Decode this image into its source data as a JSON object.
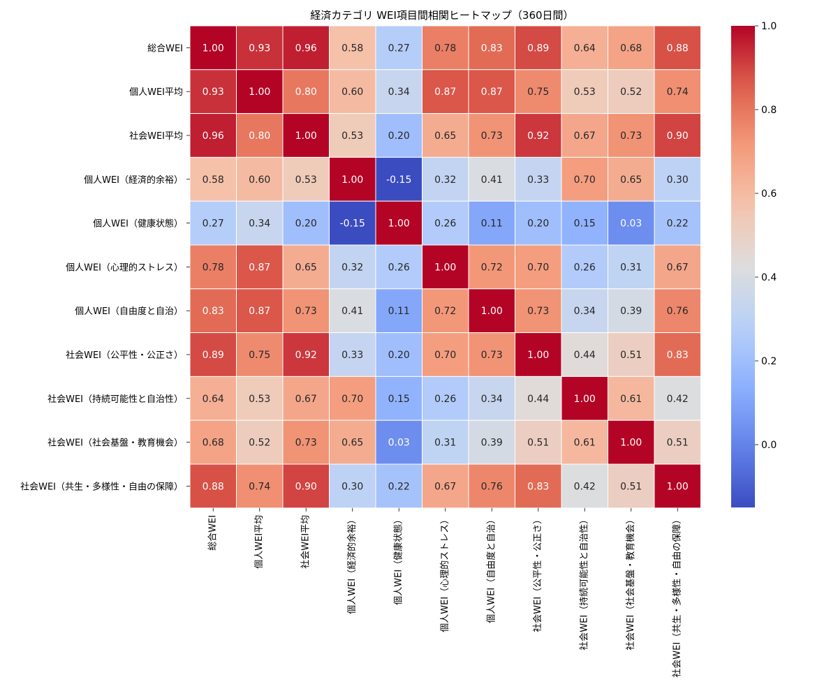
{
  "chart_data": {
    "type": "heatmap",
    "title": "経済カテゴリ WEI項目間相関ヒートマップ（360日間）",
    "xlabel": "",
    "ylabel": "",
    "labels": [
      "総合WEI",
      "個人WEI平均",
      "社会WEI平均",
      "個人WEI（経済的余裕）",
      "個人WEI（健康状態）",
      "個人WEI（心理的ストレス）",
      "個人WEI（自由度と自治）",
      "社会WEI（公平性・公正さ）",
      "社会WEI（持続可能性と自治性）",
      "社会WEI（社会基盤・教育機会）",
      "社会WEI（共生・多様性・自由の保障）"
    ],
    "values": [
      [
        1.0,
        0.93,
        0.96,
        0.58,
        0.27,
        0.78,
        0.83,
        0.89,
        0.64,
        0.68,
        0.88
      ],
      [
        0.93,
        1.0,
        0.8,
        0.6,
        0.34,
        0.87,
        0.87,
        0.75,
        0.53,
        0.52,
        0.74
      ],
      [
        0.96,
        0.8,
        1.0,
        0.53,
        0.2,
        0.65,
        0.73,
        0.92,
        0.67,
        0.73,
        0.9
      ],
      [
        0.58,
        0.6,
        0.53,
        1.0,
        -0.15,
        0.32,
        0.41,
        0.33,
        0.7,
        0.65,
        0.3
      ],
      [
        0.27,
        0.34,
        0.2,
        -0.15,
        1.0,
        0.26,
        0.11,
        0.2,
        0.15,
        0.03,
        0.22
      ],
      [
        0.78,
        0.87,
        0.65,
        0.32,
        0.26,
        1.0,
        0.72,
        0.7,
        0.26,
        0.31,
        0.67
      ],
      [
        0.83,
        0.87,
        0.73,
        0.41,
        0.11,
        0.72,
        1.0,
        0.73,
        0.34,
        0.39,
        0.76
      ],
      [
        0.89,
        0.75,
        0.92,
        0.33,
        0.2,
        0.7,
        0.73,
        1.0,
        0.44,
        0.51,
        0.83
      ],
      [
        0.64,
        0.53,
        0.67,
        0.7,
        0.15,
        0.26,
        0.34,
        0.44,
        1.0,
        0.61,
        0.42
      ],
      [
        0.68,
        0.52,
        0.73,
        0.65,
        0.03,
        0.31,
        0.39,
        0.51,
        0.61,
        1.0,
        0.51
      ],
      [
        0.88,
        0.74,
        0.9,
        0.3,
        0.22,
        0.67,
        0.76,
        0.83,
        0.42,
        0.51,
        1.0
      ]
    ],
    "colormap": "coolwarm",
    "vmin": -0.15,
    "vmax": 1.0,
    "colorbar_ticks": [
      "0.0",
      "0.2",
      "0.4",
      "0.6",
      "0.8",
      "1.0"
    ],
    "legend": "right",
    "grid": true
  }
}
